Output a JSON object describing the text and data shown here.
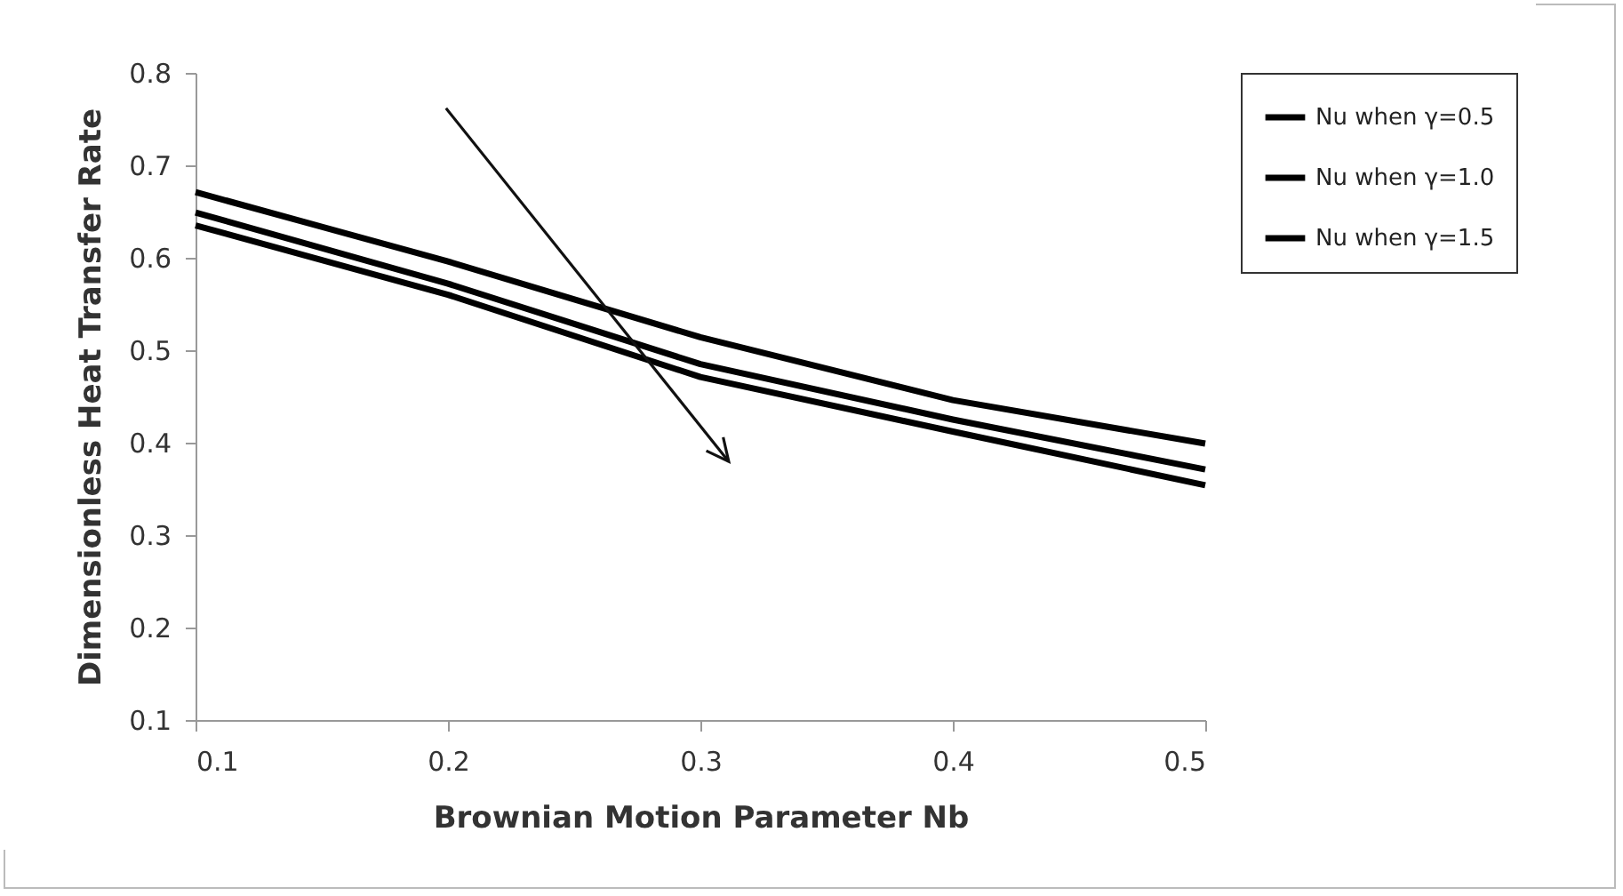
{
  "chart_data": {
    "type": "line",
    "xlabel": "Brownian Motion Parameter Nb",
    "ylabel": "Dimensionless Heat Transfer Rate",
    "x": [
      0.1,
      0.2,
      0.3,
      0.4,
      0.5
    ],
    "series": [
      {
        "name": "Nu when γ=0.5",
        "color": "#000000",
        "values": [
          0.671,
          0.596,
          0.514,
          0.446,
          0.399
        ]
      },
      {
        "name": "Nu when γ=1.0",
        "color": "#000000",
        "values": [
          0.649,
          0.572,
          0.485,
          0.425,
          0.371
        ]
      },
      {
        "name": "Nu when γ=1.5",
        "color": "#000000",
        "values": [
          0.635,
          0.56,
          0.471,
          0.412,
          0.354
        ]
      }
    ],
    "xlim": [
      0.1,
      0.5
    ],
    "xticks": [
      0.1,
      0.2,
      0.3,
      0.4,
      0.5
    ],
    "ylim": [
      0.1,
      0.8
    ],
    "yticks": [
      0.1,
      0.2,
      0.3,
      0.4,
      0.5,
      0.6,
      0.7,
      0.8
    ],
    "grid": false,
    "legend": "right",
    "marker": "none",
    "line_style": "solid"
  }
}
